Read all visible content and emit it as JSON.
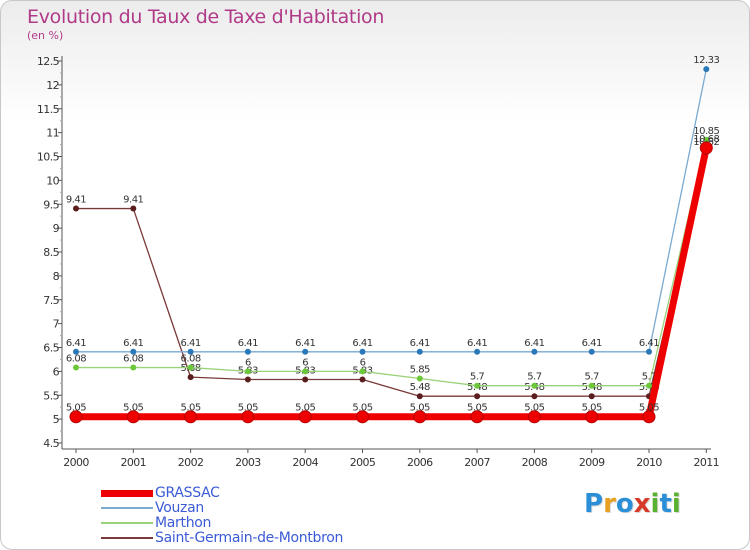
{
  "header": {
    "title": "Evolution du Taux de Taxe d'Habitation",
    "subtitle": "(en %)"
  },
  "brand": {
    "letters": [
      "P",
      "r",
      "o",
      "x",
      "i",
      "t",
      "i"
    ],
    "colors": [
      "#2a8fd6",
      "#e8a020",
      "#2a8fd6",
      "#d83a2a",
      "#5ab030",
      "#2a8fd6",
      "#5ab030"
    ]
  },
  "chart_data": {
    "type": "line",
    "title": "Evolution du Taux de Taxe d'Habitation",
    "ylabel": "(en %)",
    "xlabel": "",
    "ylim": [
      4.5,
      12.5
    ],
    "y_ticks": [
      "4.5",
      "5",
      "5.5",
      "6",
      "6.5",
      "7",
      "7.5",
      "8",
      "8.5",
      "9",
      "9.5",
      "10",
      "10.5",
      "11",
      "11.5",
      "12",
      "12.5"
    ],
    "categories": [
      "2000",
      "2001",
      "2002",
      "2003",
      "2004",
      "2005",
      "2006",
      "2007",
      "2008",
      "2009",
      "2010",
      "2011"
    ],
    "series": [
      {
        "name": "Saint-Germain-de-Montbron",
        "color": "#7a3a3a",
        "dot": "#5a1e1e",
        "width": 1.3,
        "radius": 3,
        "values": [
          9.41,
          9.41,
          5.88,
          5.83,
          5.83,
          5.83,
          5.48,
          5.48,
          5.48,
          5.48,
          5.48,
          10.62
        ],
        "labels": [
          "9.41",
          "9.41",
          "5.88",
          "5.83",
          "5.83",
          "5.83",
          "5.48",
          "5.48",
          "5.48",
          "5.48",
          "5.48",
          "10.62"
        ]
      },
      {
        "name": "Marthon",
        "color": "#9ad27a",
        "dot": "#6cc83a",
        "width": 1.3,
        "radius": 3,
        "values": [
          6.08,
          6.08,
          6.08,
          6.0,
          6.0,
          6.0,
          5.85,
          5.7,
          5.7,
          5.7,
          5.7,
          10.85
        ],
        "labels": [
          "6.08",
          "6.08",
          "6.08",
          "6",
          "6",
          "6",
          "5.85",
          "5.7",
          "5.7",
          "5.7",
          "5.7",
          "10.85"
        ]
      },
      {
        "name": "Vouzan",
        "color": "#7aaad0",
        "dot": "#2a78b8",
        "width": 1.3,
        "radius": 3,
        "values": [
          6.41,
          6.41,
          6.41,
          6.41,
          6.41,
          6.41,
          6.41,
          6.41,
          6.41,
          6.41,
          6.41,
          12.33
        ],
        "labels": [
          "6.41",
          "6.41",
          "6.41",
          "6.41",
          "6.41",
          "6.41",
          "6.41",
          "6.41",
          "6.41",
          "6.41",
          "6.41",
          "12.33"
        ]
      },
      {
        "name": "GRASSAC",
        "color": "#ee0000",
        "dot": "#ee0000",
        "width": 7,
        "radius": 6,
        "values": [
          5.05,
          5.05,
          5.05,
          5.05,
          5.05,
          5.05,
          5.05,
          5.05,
          5.05,
          5.05,
          5.05,
          10.68
        ],
        "labels": [
          "5.05",
          "5.05",
          "5.05",
          "5.05",
          "5.05",
          "5.05",
          "5.05",
          "5.05",
          "5.05",
          "5.05",
          "5.05",
          "10.68"
        ]
      }
    ],
    "legend": [
      {
        "name": "GRASSAC",
        "color": "#ee0000",
        "thickness": 7
      },
      {
        "name": "Vouzan",
        "color": "#7aaad0",
        "thickness": 1.5
      },
      {
        "name": "Marthon",
        "color": "#9ad27a",
        "thickness": 1.5
      },
      {
        "name": "Saint-Germain-de-Montbron",
        "color": "#7a3a3a",
        "thickness": 1.5
      }
    ],
    "legend_position": "bottom-left",
    "grid": false
  }
}
